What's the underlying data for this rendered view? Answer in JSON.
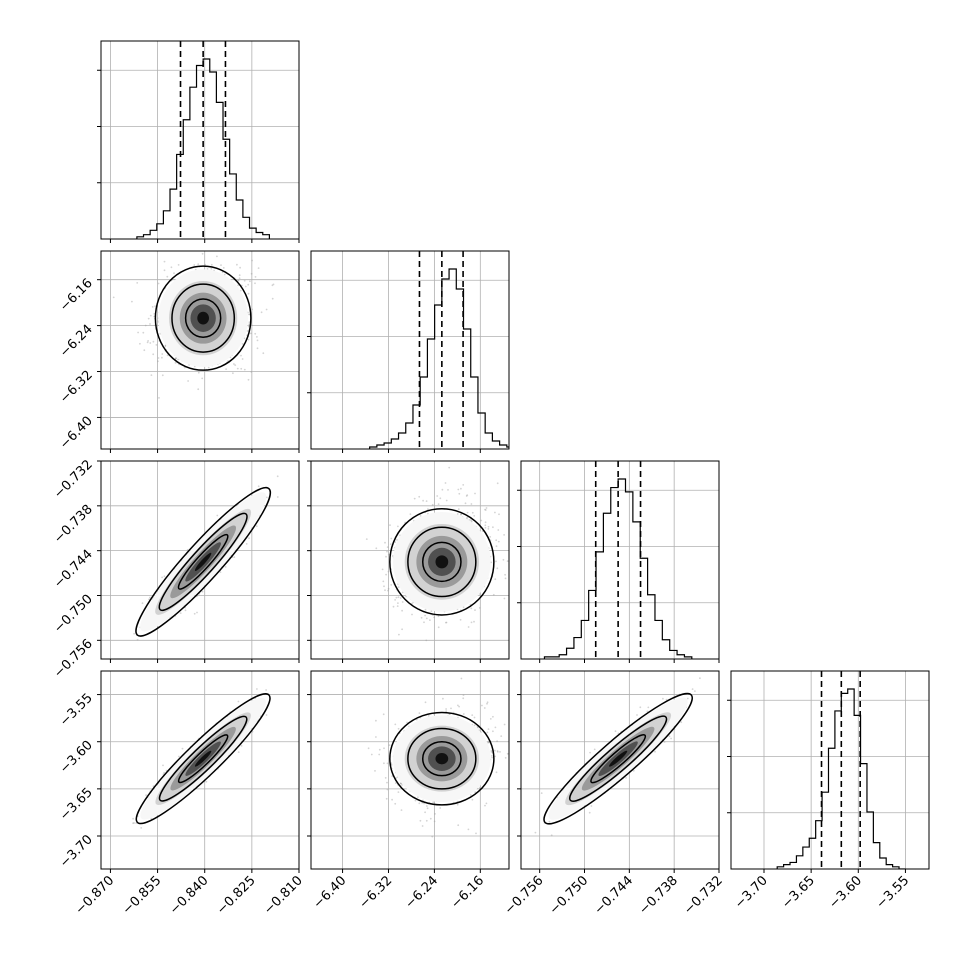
{
  "chart_data": {
    "type": "corner",
    "grid_lines": true,
    "parameters": [
      {
        "range": [
          -0.873,
          -0.81
        ],
        "ticks": [
          -0.87,
          -0.855,
          -0.84,
          -0.825,
          -0.81
        ],
        "tick_labels": [
          "−0.870",
          "−0.855",
          "−0.840",
          "−0.825",
          "−0.810"
        ],
        "median": -0.8405,
        "sigma": 0.0062,
        "quantiles": [
          -0.8477,
          -0.8405,
          -0.8334
        ],
        "hist_counts": [
          1,
          2,
          4,
          7,
          13,
          23,
          39,
          55,
          70,
          80,
          83,
          77,
          63,
          46,
          30,
          18,
          10,
          5,
          3,
          2
        ]
      },
      {
        "range": [
          -6.455,
          -6.11
        ],
        "ticks": [
          -6.4,
          -6.32,
          -6.24,
          -6.16
        ],
        "tick_labels": [
          "−6.40",
          "−6.32",
          "−6.24",
          "−6.16"
        ],
        "median": -6.227,
        "sigma": 0.037,
        "quantiles": [
          -6.266,
          -6.227,
          -6.19
        ],
        "hist_counts": [
          1,
          2,
          3,
          5,
          8,
          13,
          22,
          36,
          55,
          72,
          85,
          90,
          80,
          60,
          36,
          18,
          8,
          4,
          2,
          1
        ]
      },
      {
        "range": [
          -0.7585,
          -0.732
        ],
        "ticks": [
          -0.756,
          -0.75,
          -0.744,
          -0.738,
          -0.732
        ],
        "tick_labels": [
          "−0.756",
          "−0.750",
          "−0.744",
          "−0.738",
          "−0.732"
        ],
        "median": -0.7455,
        "sigma": 0.0029,
        "quantiles": [
          -0.7485,
          -0.7455,
          -0.7425
        ],
        "hist_counts": [
          1,
          1,
          2,
          5,
          10,
          18,
          32,
          50,
          68,
          80,
          84,
          78,
          64,
          47,
          30,
          18,
          9,
          4,
          2,
          1
        ]
      },
      {
        "range": [
          -3.735,
          -3.525
        ],
        "ticks": [
          -3.7,
          -3.65,
          -3.6,
          -3.55
        ],
        "tick_labels": [
          "−3.70",
          "−3.65",
          "−3.60",
          "−3.55"
        ],
        "median": -3.618,
        "sigma": 0.02,
        "quantiles": [
          -3.639,
          -3.618,
          -3.598
        ],
        "hist_counts": [
          1,
          2,
          3,
          6,
          10,
          14,
          22,
          35,
          55,
          72,
          80,
          82,
          70,
          48,
          26,
          12,
          5,
          2,
          1,
          0
        ]
      }
    ],
    "correlations": [
      [
        0,
        1,
        0.15
      ],
      [
        0,
        2,
        0.9
      ],
      [
        0,
        3,
        0.9
      ],
      [
        1,
        2,
        0.15
      ],
      [
        1,
        3,
        0.15
      ],
      [
        2,
        3,
        0.9
      ]
    ],
    "xlabel": "",
    "ylabel": "",
    "title": ""
  }
}
